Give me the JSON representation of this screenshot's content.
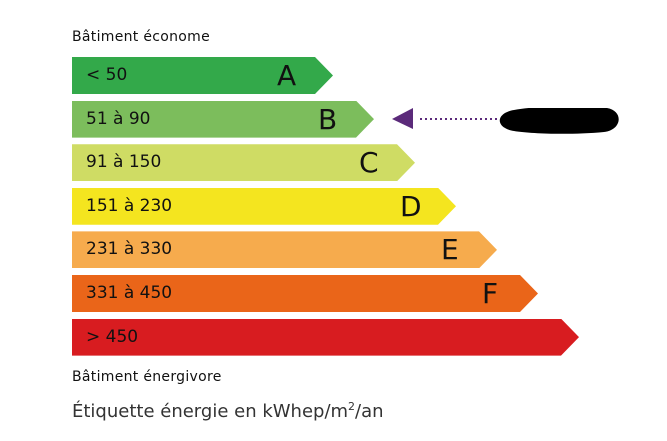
{
  "top_label": "Bâtiment économe",
  "bottom_label": "Bâtiment énergivore",
  "footer": {
    "prefix": "Étiquette énergie en kWhep/m",
    "sup": "2",
    "suffix": "/an"
  },
  "classes": [
    {
      "letter": "A",
      "range": "< 50",
      "color": "#33a94a"
    },
    {
      "letter": "B",
      "range": "51 à 90",
      "color": "#7cbd5c"
    },
    {
      "letter": "C",
      "range": "91 à 150",
      "color": "#cfdc64"
    },
    {
      "letter": "D",
      "range": "151 à 230",
      "color": "#f4e51f"
    },
    {
      "letter": "E",
      "range": "231 à 330",
      "color": "#f6ab4d"
    },
    {
      "letter": "F",
      "range": "331 à 450",
      "color": "#ea6519"
    },
    {
      "letter": "",
      "range": "> 450",
      "color": "#d81c20"
    }
  ],
  "indicator": {
    "class": "B",
    "color": "#5b2a7a"
  }
}
